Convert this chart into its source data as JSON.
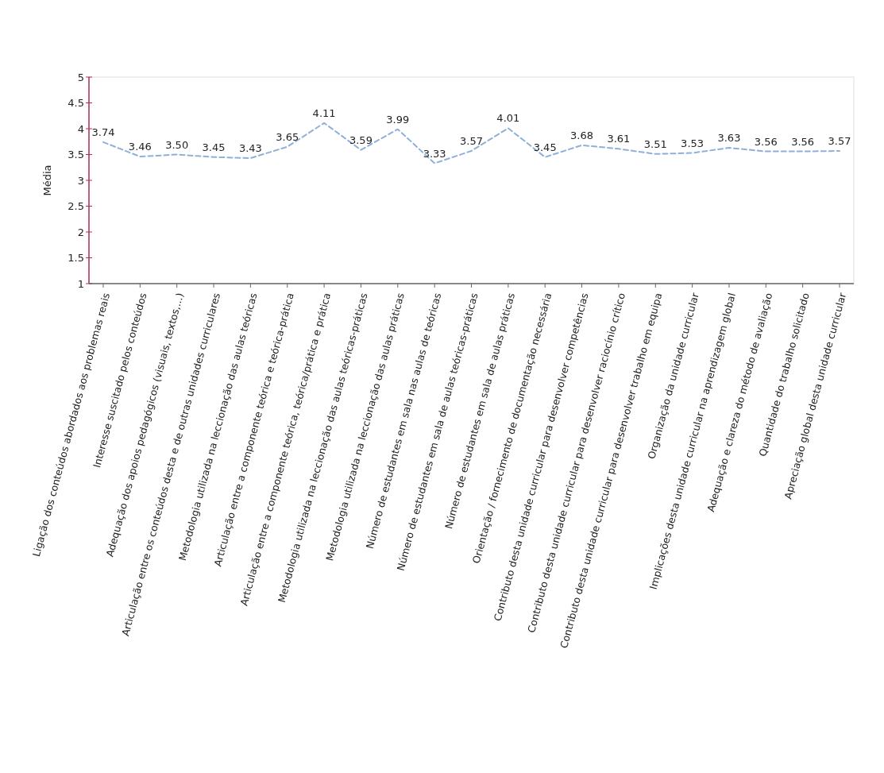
{
  "chart_data": {
    "type": "line",
    "ylabel": "Média",
    "categories": [
      "Ligação dos conteúdos abordados aos problemas reais",
      "Interesse suscitado pelos conteúdos",
      "Adequação dos apoios pedagógicos (visuais, textos,...)",
      "Articulação entre os conteúdos desta e de outras unidades curriculares",
      "Metodologia utilizada na leccionação das aulas teóricas",
      "Articulação entre a componente teórica e teórica-prática",
      "Articulação entre a componente teórica, teórica/prática e prática",
      "Metodologia utilizada na leccionação das aulas teóricas-práticas",
      "Metodologia utilizada na leccionação das aulas práticas",
      "Número de estudantes em sala nas aulas de teóricas",
      "Número de estudantes em sala de aulas teóricas-práticas",
      "Número de estudantes em sala de aulas práticas",
      "Orientação / fornecimento de documentação necessária",
      "Contributo desta unidade curricular para desenvolver competências",
      "Contributo desta unidade curricular para desenvolver raciocínio crítico",
      "Contributo desta unidade curricular para desenvolver trabalho em equipa",
      "Organização da unidade curricular",
      "Implicações desta unidade curricular na aprendizagem global",
      "Adequação e clareza do método de avaliação",
      "Quantidade do trabalho solicitado",
      "Apreciação global desta unidade curricular"
    ],
    "series": [
      {
        "color": "#8fb0d8",
        "values": [
          3.74,
          3.46,
          3.5,
          3.45,
          3.43,
          3.65,
          4.11,
          3.59,
          3.99,
          3.33,
          3.57,
          4.01,
          3.45,
          3.68,
          3.61,
          3.51,
          3.53,
          3.63,
          3.56,
          3.56,
          3.57
        ],
        "value_labels": [
          "3.74",
          "3.46",
          "3.50",
          "3.45",
          "3.43",
          "3.65",
          "4.11",
          "3.59",
          "3.99",
          "3.33",
          "3.57",
          "4.01",
          "3.45",
          "3.68",
          "3.61",
          "3.51",
          "3.53",
          "3.63",
          "3.56",
          "3.56",
          "3.57"
        ]
      }
    ],
    "ylim": [
      1,
      5
    ],
    "yticks": [
      1,
      1.5,
      2,
      2.5,
      3,
      3.5,
      4,
      4.5,
      5
    ],
    "grid": false,
    "marker": "none",
    "line_style": "dashed"
  }
}
